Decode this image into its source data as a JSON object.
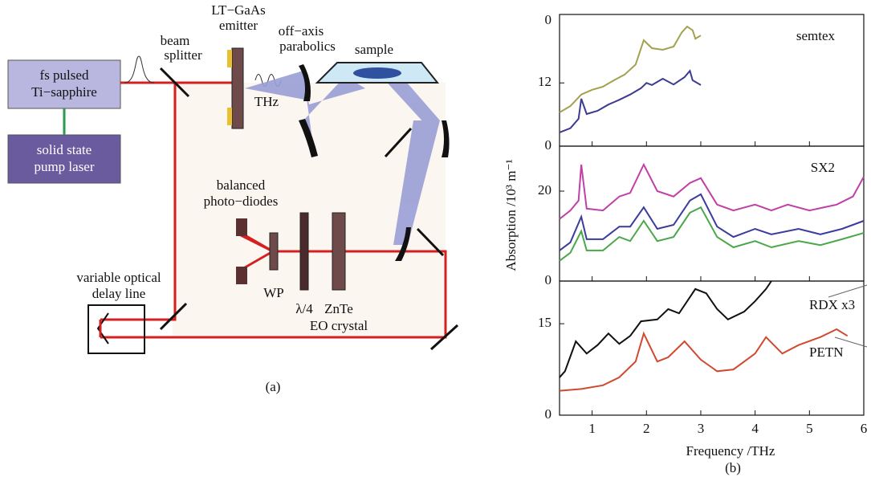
{
  "diagram": {
    "laser": [
      "fs pulsed",
      "Ti−sapphire"
    ],
    "pump": [
      "solid state",
      "pump laser"
    ],
    "beam_splitter": [
      "beam",
      "splitter"
    ],
    "emitter": [
      "LT−GaAs",
      "emitter"
    ],
    "parabolics": [
      "off−axis",
      "parabolics"
    ],
    "sample": "sample",
    "thz": "THz",
    "photodiodes": [
      "balanced",
      "photo−diodes"
    ],
    "wp": "WP",
    "quarter_wave": "λ/4",
    "crystal": [
      "ZnTe",
      "EO crystal"
    ],
    "delay": [
      "variable optical",
      "delay line"
    ],
    "caption": "(a)"
  },
  "figure_b": {
    "ylabel": "Absorption /10³ m⁻¹",
    "xlabel": "Frequency /THz",
    "caption": "(b)"
  },
  "chart_data": [
    {
      "type": "line",
      "panel_label": "semtex",
      "top_edge_label": "0",
      "xlim": [
        0.4,
        6
      ],
      "ylim": [
        0,
        25
      ],
      "yticks": [
        0,
        12
      ],
      "series": [
        {
          "color": "#a3a04e",
          "x": [
            0.4,
            0.6,
            0.8,
            1.0,
            1.2,
            1.4,
            1.6,
            1.8,
            1.95,
            2.1,
            2.3,
            2.5,
            2.65,
            2.75,
            2.85,
            2.9,
            3.0
          ],
          "values": [
            6.4,
            7.6,
            9.8,
            10.7,
            11.3,
            12.5,
            13.6,
            15.5,
            20.1,
            18.6,
            18.3,
            18.9,
            21.6,
            22.7,
            22,
            20.4,
            21
          ]
        },
        {
          "color": "#3b3b8f",
          "x": [
            0.4,
            0.6,
            0.75,
            0.8,
            0.9,
            1.1,
            1.3,
            1.5,
            1.7,
            1.9,
            2.0,
            2.1,
            2.3,
            2.5,
            2.7,
            2.8,
            2.85,
            3.0
          ],
          "values": [
            2.6,
            3.4,
            5.2,
            9,
            6.1,
            6.7,
            7.9,
            8.8,
            9.8,
            11,
            12,
            11.6,
            12.8,
            11.7,
            13.1,
            14.3,
            12.5,
            11.6
          ]
        }
      ]
    },
    {
      "type": "line",
      "panel_label": "SX2",
      "xlim": [
        0.4,
        6
      ],
      "ylim": [
        0,
        30
      ],
      "yticks": [
        0,
        20
      ],
      "series": [
        {
          "color": "#c040a8",
          "x": [
            0.4,
            0.6,
            0.75,
            0.8,
            0.9,
            1.2,
            1.5,
            1.7,
            1.95,
            2.2,
            2.5,
            2.8,
            3.0,
            3.3,
            3.6,
            4.0,
            4.3,
            4.6,
            5.0,
            5.5,
            5.8,
            6.0
          ],
          "values": [
            13.8,
            15.7,
            17.9,
            25.9,
            16.1,
            15.7,
            18.8,
            19.6,
            25.9,
            20,
            18.8,
            21.8,
            22.9,
            17,
            15.7,
            17,
            15.7,
            17,
            15.7,
            17,
            18.8,
            23.2
          ]
        },
        {
          "color": "#3b3b9f",
          "x": [
            0.4,
            0.6,
            0.8,
            0.9,
            1.2,
            1.5,
            1.7,
            1.95,
            2.2,
            2.5,
            2.8,
            3.0,
            3.3,
            3.6,
            4.0,
            4.3,
            4.8,
            5.2,
            5.6,
            6.0
          ],
          "values": [
            6.8,
            8.6,
            14.3,
            9.3,
            9.3,
            12.1,
            12.1,
            16.4,
            11.6,
            12.5,
            17.9,
            19.3,
            12.1,
            9.8,
            11.6,
            10.4,
            11.6,
            10.4,
            11.6,
            13.4
          ]
        },
        {
          "color": "#4aa84a",
          "x": [
            0.4,
            0.6,
            0.8,
            0.9,
            1.2,
            1.5,
            1.7,
            1.95,
            2.2,
            2.5,
            2.8,
            3.0,
            3.3,
            3.6,
            4.0,
            4.3,
            4.8,
            5.2,
            5.6,
            6.0
          ],
          "values": [
            4.5,
            6.3,
            11.1,
            6.8,
            6.8,
            9.8,
            8.9,
            13.4,
            8.9,
            9.8,
            15.2,
            16.4,
            9.8,
            7.5,
            8.9,
            7.5,
            8.9,
            8,
            9.3,
            10.7
          ]
        }
      ]
    },
    {
      "type": "line",
      "xlim": [
        0.4,
        6
      ],
      "ylim": [
        0,
        22
      ],
      "yticks": [
        0,
        15
      ],
      "xticks": [
        1,
        2,
        3,
        4,
        5,
        6
      ],
      "series": [
        {
          "name": "RDX x3",
          "color": "#111111",
          "x": [
            0.4,
            0.5,
            0.7,
            0.9,
            1.1,
            1.3,
            1.5,
            1.7,
            1.9,
            2.2,
            2.4,
            2.6,
            2.9,
            3.1,
            3.3,
            3.5,
            3.8,
            4.0,
            4.2,
            4.3
          ],
          "values": [
            6.2,
            7.2,
            12.1,
            10.1,
            11.5,
            13.4,
            11.7,
            13,
            15.4,
            15.7,
            17.4,
            16.7,
            20.7,
            20,
            17.4,
            15.7,
            17,
            18.7,
            20.7,
            22
          ]
        },
        {
          "name": "PETN",
          "color": "#d04a30",
          "x": [
            0.4,
            0.8,
            1.2,
            1.5,
            1.8,
            1.95,
            2.2,
            2.4,
            2.7,
            3.0,
            3.3,
            3.6,
            4.0,
            4.2,
            4.5,
            4.8,
            5.2,
            5.5,
            5.7
          ],
          "values": [
            4,
            4.3,
            4.9,
            6.2,
            8.8,
            13.4,
            8.8,
            9.5,
            12.1,
            9.1,
            7.2,
            7.5,
            10.1,
            12.8,
            10.1,
            11.5,
            12.8,
            14.1,
            13
          ]
        }
      ]
    }
  ]
}
